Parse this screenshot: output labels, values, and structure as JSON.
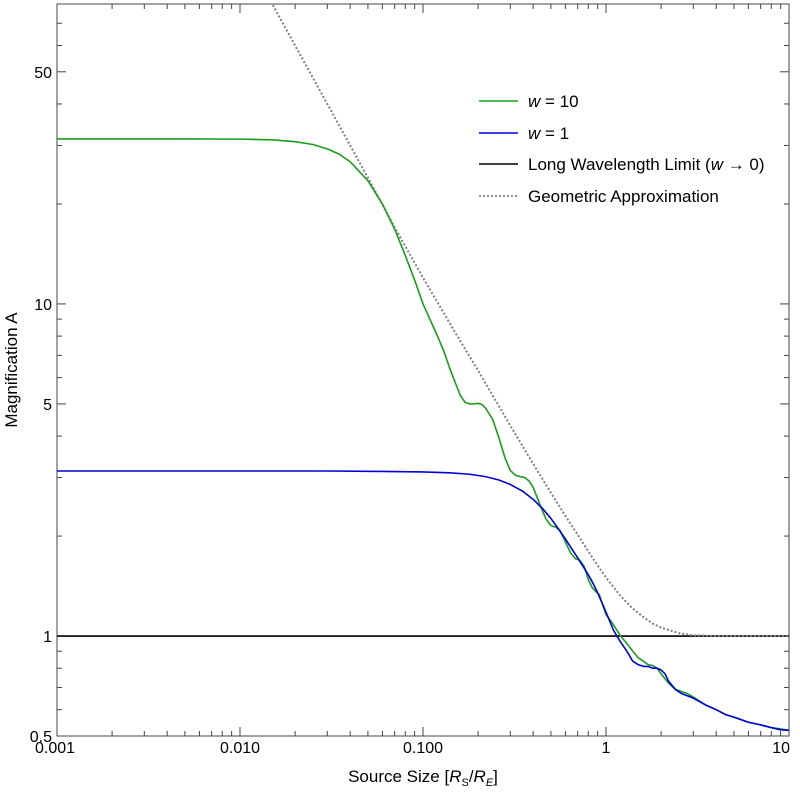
{
  "chart_data": {
    "type": "line",
    "xscale": "log",
    "yscale": "log",
    "xlim": [
      0.001,
      10
    ],
    "ylim": [
      0.5,
      80
    ],
    "xlabel": "Source Size [R_S/R_E]",
    "xlabel_parts": {
      "prefix": "Source Size [",
      "r1": "R",
      "s1": "S",
      "slash": "/",
      "r2": "R",
      "s2": "E",
      "suffix": "]"
    },
    "ylabel": "Magnification A",
    "x_ticks": [
      {
        "value": 0.001,
        "label": "0.001"
      },
      {
        "value": 0.01,
        "label": "0.010"
      },
      {
        "value": 0.1,
        "label": "0.100"
      },
      {
        "value": 1,
        "label": "1"
      },
      {
        "value": 10,
        "label": "10"
      }
    ],
    "y_ticks": [
      {
        "value": 0.5,
        "label": "0.5"
      },
      {
        "value": 1,
        "label": "1"
      },
      {
        "value": 5,
        "label": "5"
      },
      {
        "value": 10,
        "label": "10"
      },
      {
        "value": 50,
        "label": "50"
      }
    ],
    "grid": false,
    "legend_position": "top-right",
    "series": [
      {
        "name_parts": {
          "italic": "w",
          "rest": " = 10"
        },
        "color": "#1a9e1a",
        "style": "solid",
        "points": [
          [
            0.001,
            31.4
          ],
          [
            0.005,
            31.4
          ],
          [
            0.01,
            31.35
          ],
          [
            0.015,
            31.2
          ],
          [
            0.02,
            30.8
          ],
          [
            0.025,
            30.2
          ],
          [
            0.03,
            29.3
          ],
          [
            0.035,
            28.2
          ],
          [
            0.04,
            26.8
          ],
          [
            0.05,
            23.5
          ],
          [
            0.06,
            20.0
          ],
          [
            0.07,
            16.8
          ],
          [
            0.08,
            14.0
          ],
          [
            0.09,
            11.8
          ],
          [
            0.1,
            10.0
          ],
          [
            0.11,
            8.9
          ],
          [
            0.12,
            8.0
          ],
          [
            0.13,
            7.2
          ],
          [
            0.14,
            6.4
          ],
          [
            0.15,
            5.8
          ],
          [
            0.16,
            5.3
          ],
          [
            0.17,
            5.05
          ],
          [
            0.18,
            5.0
          ],
          [
            0.19,
            5.0
          ],
          [
            0.2,
            5.02
          ],
          [
            0.21,
            4.98
          ],
          [
            0.22,
            4.85
          ],
          [
            0.24,
            4.5
          ],
          [
            0.26,
            3.95
          ],
          [
            0.28,
            3.45
          ],
          [
            0.3,
            3.15
          ],
          [
            0.32,
            3.05
          ],
          [
            0.34,
            3.02
          ],
          [
            0.36,
            3.0
          ],
          [
            0.38,
            2.93
          ],
          [
            0.4,
            2.8
          ],
          [
            0.42,
            2.62
          ],
          [
            0.44,
            2.45
          ],
          [
            0.47,
            2.25
          ],
          [
            0.5,
            2.15
          ],
          [
            0.53,
            2.13
          ],
          [
            0.56,
            2.08
          ],
          [
            0.6,
            1.92
          ],
          [
            0.64,
            1.78
          ],
          [
            0.68,
            1.71
          ],
          [
            0.72,
            1.69
          ],
          [
            0.76,
            1.62
          ],
          [
            0.8,
            1.48
          ],
          [
            0.84,
            1.4
          ],
          [
            0.88,
            1.36
          ],
          [
            0.92,
            1.33
          ],
          [
            0.96,
            1.24
          ],
          [
            1.0,
            1.16
          ],
          [
            1.05,
            1.12
          ],
          [
            1.1,
            1.08
          ],
          [
            1.2,
            1.0
          ],
          [
            1.3,
            0.95
          ],
          [
            1.4,
            0.9
          ],
          [
            1.5,
            0.86
          ],
          [
            1.6,
            0.84
          ],
          [
            1.7,
            0.82
          ],
          [
            1.8,
            0.815
          ],
          [
            1.9,
            0.8
          ],
          [
            2.0,
            0.77
          ],
          [
            2.2,
            0.72
          ],
          [
            2.4,
            0.69
          ],
          [
            2.6,
            0.68
          ],
          [
            2.8,
            0.67
          ],
          [
            3.0,
            0.655
          ],
          [
            3.5,
            0.62
          ],
          [
            4.0,
            0.6
          ],
          [
            4.5,
            0.58
          ],
          [
            5.0,
            0.57
          ],
          [
            6.0,
            0.55
          ],
          [
            7.0,
            0.54
          ],
          [
            8.0,
            0.53
          ],
          [
            9.0,
            0.525
          ],
          [
            10.0,
            0.52
          ]
        ]
      },
      {
        "name_parts": {
          "italic": "w",
          "rest": " = 1"
        },
        "color": "#0000dd",
        "style": "solid",
        "points": [
          [
            0.001,
            3.14
          ],
          [
            0.01,
            3.14
          ],
          [
            0.03,
            3.14
          ],
          [
            0.06,
            3.13
          ],
          [
            0.1,
            3.12
          ],
          [
            0.14,
            3.1
          ],
          [
            0.18,
            3.07
          ],
          [
            0.22,
            3.02
          ],
          [
            0.26,
            2.95
          ],
          [
            0.3,
            2.86
          ],
          [
            0.35,
            2.73
          ],
          [
            0.4,
            2.58
          ],
          [
            0.45,
            2.42
          ],
          [
            0.5,
            2.26
          ],
          [
            0.55,
            2.1
          ],
          [
            0.6,
            1.96
          ],
          [
            0.65,
            1.83
          ],
          [
            0.7,
            1.72
          ],
          [
            0.75,
            1.62
          ],
          [
            0.8,
            1.53
          ],
          [
            0.85,
            1.44
          ],
          [
            0.9,
            1.35
          ],
          [
            0.95,
            1.26
          ],
          [
            1.0,
            1.18
          ],
          [
            1.1,
            1.04
          ],
          [
            1.2,
            0.96
          ],
          [
            1.3,
            0.9
          ],
          [
            1.4,
            0.84
          ],
          [
            1.5,
            0.82
          ],
          [
            1.6,
            0.81
          ],
          [
            1.7,
            0.81
          ],
          [
            1.8,
            0.8
          ],
          [
            1.9,
            0.8
          ],
          [
            2.0,
            0.79
          ],
          [
            2.1,
            0.77
          ],
          [
            2.2,
            0.73
          ],
          [
            2.4,
            0.69
          ],
          [
            2.6,
            0.67
          ],
          [
            2.8,
            0.66
          ],
          [
            3.0,
            0.65
          ],
          [
            3.5,
            0.62
          ],
          [
            4.0,
            0.6
          ],
          [
            4.5,
            0.58
          ],
          [
            5.0,
            0.57
          ],
          [
            6.0,
            0.55
          ],
          [
            7.0,
            0.54
          ],
          [
            8.0,
            0.53
          ],
          [
            9.0,
            0.522
          ],
          [
            10.0,
            0.52
          ]
        ]
      },
      {
        "name_parts": {
          "plain": "Long Wavelength Limit (",
          "italic": "w",
          "rest": " → 0)"
        },
        "color": "#000000",
        "style": "solid",
        "points": [
          [
            0.001,
            1.0
          ],
          [
            10.0,
            1.0
          ]
        ]
      },
      {
        "name_parts": {
          "plain": "Geometric Approximation"
        },
        "color": "#808080",
        "style": "dotted",
        "points": [
          [
            0.01,
            120.0
          ],
          [
            0.02,
            60.0
          ],
          [
            0.03,
            40.0
          ],
          [
            0.04,
            30.0
          ],
          [
            0.05,
            24.0
          ],
          [
            0.07,
            17.0
          ],
          [
            0.1,
            12.0
          ],
          [
            0.15,
            8.2
          ],
          [
            0.2,
            6.3
          ],
          [
            0.3,
            4.3
          ],
          [
            0.4,
            3.3
          ],
          [
            0.5,
            2.7
          ],
          [
            0.6,
            2.3
          ],
          [
            0.7,
            2.02
          ],
          [
            0.8,
            1.8
          ],
          [
            0.9,
            1.63
          ],
          [
            1.0,
            1.5
          ],
          [
            1.2,
            1.32
          ],
          [
            1.4,
            1.21
          ],
          [
            1.6,
            1.14
          ],
          [
            1.8,
            1.09
          ],
          [
            2.0,
            1.06
          ],
          [
            2.5,
            1.02
          ],
          [
            3.0,
            1.005
          ],
          [
            4.0,
            1.0
          ],
          [
            10.0,
            1.0
          ]
        ]
      }
    ]
  }
}
